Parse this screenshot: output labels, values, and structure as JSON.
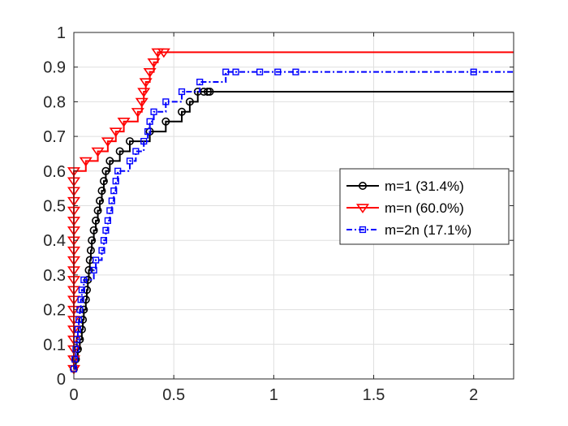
{
  "chart_data": {
    "type": "line",
    "step": true,
    "xlim": [
      0,
      2.2
    ],
    "ylim": [
      0,
      1
    ],
    "xticks": [
      0,
      0.5,
      1,
      1.5,
      2
    ],
    "yticks": [
      0,
      0.1,
      0.2,
      0.3,
      0.4,
      0.5,
      0.6,
      0.7,
      0.8,
      0.9,
      1
    ],
    "xtick_labels": [
      "0",
      "0.5",
      "1",
      "1.5",
      "2"
    ],
    "ytick_labels": [
      "0",
      "0.1",
      "0.2",
      "0.3",
      "0.4",
      "0.5",
      "0.6",
      "0.7",
      "0.8",
      "0.9",
      "1"
    ],
    "grid": true,
    "legend_position": "middle-right",
    "series": [
      {
        "name": "m=1 (31.4%)",
        "color": "#000000",
        "marker": "circle",
        "line_style": "solid",
        "x": [
          0,
          0.01,
          0.02,
          0.03,
          0.04,
          0.045,
          0.05,
          0.06,
          0.065,
          0.07,
          0.075,
          0.08,
          0.085,
          0.09,
          0.1,
          0.11,
          0.12,
          0.13,
          0.14,
          0.15,
          0.16,
          0.18,
          0.23,
          0.28,
          0.38,
          0.46,
          0.54,
          0.58,
          0.62,
          0.65,
          0.67,
          0.68,
          2.2
        ],
        "y": [
          0.029,
          0.057,
          0.086,
          0.114,
          0.143,
          0.171,
          0.2,
          0.229,
          0.257,
          0.286,
          0.314,
          0.343,
          0.371,
          0.4,
          0.429,
          0.457,
          0.486,
          0.514,
          0.543,
          0.571,
          0.6,
          0.629,
          0.657,
          0.686,
          0.714,
          0.743,
          0.771,
          0.8,
          0.829,
          0.829,
          0.829,
          0.829,
          0.829
        ]
      },
      {
        "name": "m=n (60.0%)",
        "color": "#ff0000",
        "marker": "triangle-down",
        "line_style": "solid",
        "x": [
          0,
          0,
          0,
          0,
          0,
          0,
          0,
          0,
          0,
          0,
          0,
          0,
          0,
          0,
          0,
          0,
          0,
          0,
          0,
          0,
          0,
          0.06,
          0.12,
          0.17,
          0.21,
          0.25,
          0.32,
          0.34,
          0.35,
          0.36,
          0.38,
          0.4,
          0.42,
          0.45,
          2.2
        ],
        "y": [
          0.029,
          0.057,
          0.086,
          0.114,
          0.143,
          0.171,
          0.2,
          0.229,
          0.257,
          0.286,
          0.314,
          0.343,
          0.371,
          0.4,
          0.429,
          0.457,
          0.486,
          0.514,
          0.543,
          0.571,
          0.6,
          0.629,
          0.657,
          0.686,
          0.714,
          0.743,
          0.771,
          0.8,
          0.829,
          0.857,
          0.886,
          0.914,
          0.943,
          0.943,
          0.943
        ]
      },
      {
        "name": "m=2n (17.1%)",
        "color": "#0000ff",
        "marker": "square",
        "line_style": "dash-dot",
        "x": [
          0,
          0.005,
          0.01,
          0.015,
          0.02,
          0.025,
          0.03,
          0.035,
          0.04,
          0.05,
          0.1,
          0.11,
          0.14,
          0.15,
          0.16,
          0.17,
          0.18,
          0.19,
          0.2,
          0.21,
          0.22,
          0.28,
          0.31,
          0.35,
          0.37,
          0.38,
          0.4,
          0.46,
          0.54,
          0.63,
          0.76,
          0.81,
          0.93,
          1.02,
          1.11,
          2.0,
          2.2
        ],
        "y": [
          0.029,
          0.057,
          0.086,
          0.114,
          0.143,
          0.171,
          0.2,
          0.229,
          0.257,
          0.286,
          0.314,
          0.343,
          0.371,
          0.4,
          0.429,
          0.457,
          0.486,
          0.514,
          0.543,
          0.571,
          0.6,
          0.629,
          0.657,
          0.686,
          0.714,
          0.743,
          0.771,
          0.8,
          0.829,
          0.857,
          0.886,
          0.886,
          0.886,
          0.886,
          0.886,
          0.886,
          0.886
        ]
      }
    ]
  }
}
